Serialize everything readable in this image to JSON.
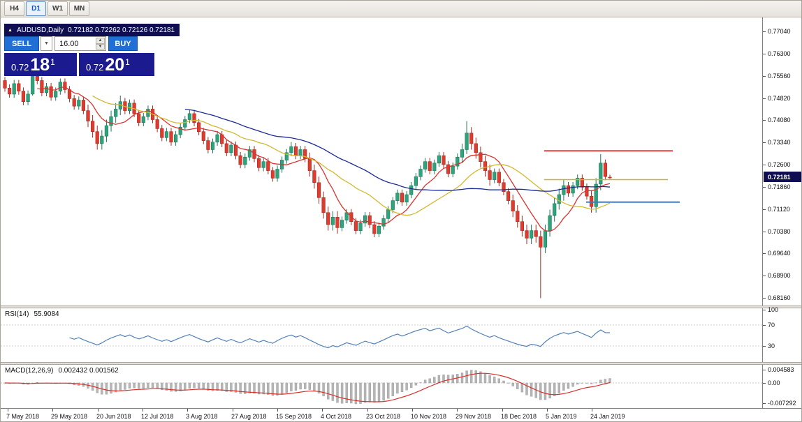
{
  "colors": {
    "trade_button": "#1f6fd6",
    "panel_navy": "#1b1b8f",
    "title_navy": "#0e0e50",
    "price_tag": "#0e0e50"
  },
  "toolbar": {
    "timeframes": [
      {
        "label": "H4",
        "active": false
      },
      {
        "label": "D1",
        "active": true
      },
      {
        "label": "W1",
        "active": false
      },
      {
        "label": "MN",
        "active": false
      }
    ]
  },
  "chart": {
    "symbol_period": "AUDUSD,Daily",
    "ohlc": "0.72182 0.72262 0.72126 0.72181",
    "trade_panel": {
      "sell_label": "SELL",
      "buy_label": "BUY",
      "volume": "16.00",
      "sell_price": {
        "prefix": "0.72",
        "big": "18",
        "pip": "1"
      },
      "buy_price": {
        "prefix": "0.72",
        "big": "20",
        "pip": "1"
      }
    },
    "price_axis": {
      "labels": [
        "0.77040",
        "0.76300",
        "0.75560",
        "0.74820",
        "0.74080",
        "0.73340",
        "0.72600",
        "0.71860",
        "0.71120",
        "0.70380",
        "0.69640",
        "0.68900",
        "0.68160"
      ],
      "current": "0.72181"
    }
  },
  "indicators": {
    "rsi": {
      "label": "RSI(14)",
      "value": "55.9084",
      "axis": [
        "100",
        "70",
        "30"
      ],
      "levels": [
        70,
        30
      ]
    },
    "macd": {
      "label": "MACD(12,26,9)",
      "values": "0.002432 0.001562",
      "axis": [
        "0.004583",
        "0.00",
        "-0.007292"
      ]
    }
  },
  "time_axis": {
    "labels": [
      "7 May 2018",
      "29 May 2018",
      "20 Jun 2018",
      "12 Jul 2018",
      "3 Aug 2018",
      "27 Aug 2018",
      "15 Sep 2018",
      "4 Oct 2018",
      "23 Oct 2018",
      "10 Nov 2018",
      "29 Nov 2018",
      "18 Dec 2018",
      "5 Jan 2019",
      "24 Jan 2019"
    ]
  },
  "chart_data": {
    "type": "candlestick",
    "title": "AUDUSD Daily",
    "symbol": "AUDUSD",
    "timeframe": "D1",
    "ylim": [
      0.6816,
      0.7704
    ],
    "x_range": [
      "7 May 2018",
      "1 Feb 2019"
    ],
    "colors": {
      "up": "#2fa37c",
      "up_border": "#1e7a5a",
      "down": "#df3c30",
      "down_border": "#a82a20",
      "rsi_line": "#4f81b8",
      "macd_hist": "#b5b5b5",
      "macd_signal": "#d92f28"
    },
    "moving_averages": [
      {
        "name": "ma-fast",
        "period": 8,
        "color": "#d9342e"
      },
      {
        "name": "ma-medium",
        "period": 20,
        "color": "#d4b82e"
      },
      {
        "name": "ma-slow",
        "period": 40,
        "color": "#1b2a94"
      }
    ],
    "horizontal_lines": [
      {
        "name": "resistance-line",
        "price": 0.7306,
        "color": "#e8413c",
        "width": 2,
        "x1": 0.714,
        "x2": 0.883
      },
      {
        "name": "pivot-line",
        "price": 0.721,
        "color": "#cdb42a",
        "width": 1.5,
        "x1": 0.714,
        "x2": 0.876
      },
      {
        "name": "support-line",
        "price": 0.7135,
        "color": "#3b7dc8",
        "width": 2,
        "x1": 0.769,
        "x2": 0.892
      }
    ],
    "indicator_params": [
      {
        "name": "RSI",
        "period": 14,
        "current": 55.9084
      },
      {
        "name": "MACD",
        "fast": 12,
        "slow": 26,
        "signal": 9,
        "current": [
          0.002432,
          0.001562
        ]
      }
    ],
    "candles": [
      [
        0.754,
        0.7552,
        0.7503,
        0.7515
      ],
      [
        0.7515,
        0.7527,
        0.7483,
        0.7495
      ],
      [
        0.7495,
        0.7542,
        0.7483,
        0.753
      ],
      [
        0.753,
        0.7542,
        0.7493,
        0.7505
      ],
      [
        0.7505,
        0.7517,
        0.7458,
        0.747
      ],
      [
        0.747,
        0.7507,
        0.7458,
        0.7495
      ],
      [
        0.7495,
        0.758,
        0.749,
        0.7555
      ],
      [
        0.7555,
        0.7567,
        0.7528,
        0.754
      ],
      [
        0.754,
        0.7552,
        0.7488,
        0.75
      ],
      [
        0.75,
        0.7532,
        0.7488,
        0.752
      ],
      [
        0.752,
        0.7532,
        0.7473,
        0.7485
      ],
      [
        0.7485,
        0.7517,
        0.7473,
        0.7505
      ],
      [
        0.7505,
        0.7547,
        0.7493,
        0.7535
      ],
      [
        0.7535,
        0.7547,
        0.7498,
        0.751
      ],
      [
        0.751,
        0.7522,
        0.7468,
        0.748
      ],
      [
        0.748,
        0.7492,
        0.7443,
        0.7455
      ],
      [
        0.7455,
        0.7487,
        0.7443,
        0.7475
      ],
      [
        0.7475,
        0.7487,
        0.7428,
        0.744
      ],
      [
        0.744,
        0.746,
        0.7385,
        0.7405
      ],
      [
        0.7405,
        0.7425,
        0.735,
        0.737
      ],
      [
        0.737,
        0.739,
        0.731,
        0.733
      ],
      [
        0.733,
        0.7375,
        0.731,
        0.7355
      ],
      [
        0.7355,
        0.741,
        0.7335,
        0.739
      ],
      [
        0.739,
        0.744,
        0.737,
        0.742
      ],
      [
        0.742,
        0.7465,
        0.74,
        0.7445
      ],
      [
        0.7445,
        0.749,
        0.7425,
        0.747
      ],
      [
        0.747,
        0.7482,
        0.7428,
        0.744
      ],
      [
        0.744,
        0.7477,
        0.7428,
        0.7465
      ],
      [
        0.7465,
        0.7477,
        0.7418,
        0.743
      ],
      [
        0.743,
        0.7442,
        0.7388,
        0.74
      ],
      [
        0.74,
        0.7432,
        0.7388,
        0.742
      ],
      [
        0.742,
        0.7457,
        0.7408,
        0.7445
      ],
      [
        0.7445,
        0.7457,
        0.7398,
        0.741
      ],
      [
        0.741,
        0.7422,
        0.7368,
        0.738
      ],
      [
        0.738,
        0.7392,
        0.7338,
        0.735
      ],
      [
        0.735,
        0.7382,
        0.7338,
        0.737
      ],
      [
        0.737,
        0.7382,
        0.7323,
        0.7335
      ],
      [
        0.7335,
        0.7372,
        0.7323,
        0.736
      ],
      [
        0.736,
        0.7397,
        0.7348,
        0.7385
      ],
      [
        0.7385,
        0.7422,
        0.7373,
        0.741
      ],
      [
        0.741,
        0.7442,
        0.7398,
        0.743
      ],
      [
        0.743,
        0.7442,
        0.7388,
        0.74
      ],
      [
        0.74,
        0.7412,
        0.7358,
        0.737
      ],
      [
        0.737,
        0.7382,
        0.7328,
        0.734
      ],
      [
        0.734,
        0.7352,
        0.7298,
        0.731
      ],
      [
        0.731,
        0.7347,
        0.7298,
        0.7335
      ],
      [
        0.7335,
        0.7372,
        0.7323,
        0.736
      ],
      [
        0.736,
        0.7372,
        0.7318,
        0.733
      ],
      [
        0.733,
        0.7342,
        0.7288,
        0.73
      ],
      [
        0.73,
        0.7337,
        0.7288,
        0.7325
      ],
      [
        0.7325,
        0.7337,
        0.7278,
        0.729
      ],
      [
        0.729,
        0.7302,
        0.7248,
        0.726
      ],
      [
        0.726,
        0.7297,
        0.7248,
        0.7285
      ],
      [
        0.7285,
        0.7322,
        0.7273,
        0.731
      ],
      [
        0.731,
        0.7322,
        0.7268,
        0.728
      ],
      [
        0.728,
        0.7292,
        0.7238,
        0.725
      ],
      [
        0.725,
        0.7282,
        0.7238,
        0.727
      ],
      [
        0.727,
        0.7282,
        0.7228,
        0.724
      ],
      [
        0.724,
        0.7252,
        0.7203,
        0.7215
      ],
      [
        0.7215,
        0.7257,
        0.7203,
        0.7245
      ],
      [
        0.7245,
        0.7287,
        0.7233,
        0.7275
      ],
      [
        0.7275,
        0.7312,
        0.7263,
        0.73
      ],
      [
        0.73,
        0.7335,
        0.7288,
        0.732
      ],
      [
        0.732,
        0.7332,
        0.7278,
        0.729
      ],
      [
        0.729,
        0.7322,
        0.7278,
        0.731
      ],
      [
        0.731,
        0.7322,
        0.7268,
        0.728
      ],
      [
        0.728,
        0.73,
        0.722,
        0.724
      ],
      [
        0.724,
        0.726,
        0.718,
        0.72
      ],
      [
        0.72,
        0.722,
        0.713,
        0.715
      ],
      [
        0.715,
        0.717,
        0.708,
        0.71
      ],
      [
        0.71,
        0.712,
        0.704,
        0.706
      ],
      [
        0.706,
        0.7105,
        0.704,
        0.7085
      ],
      [
        0.7085,
        0.7105,
        0.703,
        0.705
      ],
      [
        0.705,
        0.7087,
        0.7038,
        0.7075
      ],
      [
        0.7075,
        0.7112,
        0.7063,
        0.71
      ],
      [
        0.71,
        0.7112,
        0.7058,
        0.707
      ],
      [
        0.707,
        0.7082,
        0.7028,
        0.704
      ],
      [
        0.704,
        0.7077,
        0.7028,
        0.7065
      ],
      [
        0.7065,
        0.7102,
        0.7053,
        0.709
      ],
      [
        0.709,
        0.7102,
        0.7048,
        0.706
      ],
      [
        0.706,
        0.7072,
        0.7018,
        0.703
      ],
      [
        0.703,
        0.7067,
        0.7018,
        0.7055
      ],
      [
        0.7055,
        0.7092,
        0.7043,
        0.708
      ],
      [
        0.708,
        0.7122,
        0.7068,
        0.711
      ],
      [
        0.711,
        0.7152,
        0.7098,
        0.714
      ],
      [
        0.714,
        0.7177,
        0.7128,
        0.7165
      ],
      [
        0.7165,
        0.7177,
        0.7123,
        0.7135
      ],
      [
        0.7135,
        0.7172,
        0.7123,
        0.716
      ],
      [
        0.716,
        0.7202,
        0.7148,
        0.719
      ],
      [
        0.719,
        0.7232,
        0.7178,
        0.722
      ],
      [
        0.722,
        0.7257,
        0.7208,
        0.7245
      ],
      [
        0.7245,
        0.7282,
        0.7233,
        0.727
      ],
      [
        0.727,
        0.7282,
        0.7228,
        0.724
      ],
      [
        0.724,
        0.7277,
        0.7228,
        0.7265
      ],
      [
        0.7265,
        0.7302,
        0.7253,
        0.729
      ],
      [
        0.729,
        0.7302,
        0.7248,
        0.726
      ],
      [
        0.726,
        0.7272,
        0.7218,
        0.723
      ],
      [
        0.723,
        0.7267,
        0.7218,
        0.7255
      ],
      [
        0.7255,
        0.7297,
        0.7243,
        0.7285
      ],
      [
        0.7285,
        0.733,
        0.7265,
        0.731
      ],
      [
        0.731,
        0.7405,
        0.7295,
        0.7365
      ],
      [
        0.7365,
        0.7385,
        0.731,
        0.733
      ],
      [
        0.733,
        0.735,
        0.728,
        0.73
      ],
      [
        0.73,
        0.732,
        0.725,
        0.727
      ],
      [
        0.727,
        0.729,
        0.722,
        0.724
      ],
      [
        0.724,
        0.726,
        0.719,
        0.721
      ],
      [
        0.721,
        0.7247,
        0.7198,
        0.7235
      ],
      [
        0.7235,
        0.7247,
        0.7188,
        0.72
      ],
      [
        0.72,
        0.7212,
        0.7158,
        0.717
      ],
      [
        0.717,
        0.7182,
        0.7128,
        0.714
      ],
      [
        0.714,
        0.716,
        0.7085,
        0.7105
      ],
      [
        0.7105,
        0.7125,
        0.705,
        0.707
      ],
      [
        0.707,
        0.709,
        0.702,
        0.704
      ],
      [
        0.704,
        0.706,
        0.6995,
        0.7015
      ],
      [
        0.7015,
        0.706,
        0.6995,
        0.704
      ],
      [
        0.704,
        0.706,
        0.7,
        0.702
      ],
      [
        0.702,
        0.704,
        0.6815,
        0.6985
      ],
      [
        0.6985,
        0.706,
        0.6965,
        0.704
      ],
      [
        0.704,
        0.711,
        0.702,
        0.709
      ],
      [
        0.709,
        0.715,
        0.707,
        0.713
      ],
      [
        0.713,
        0.718,
        0.711,
        0.716
      ],
      [
        0.716,
        0.721,
        0.714,
        0.719
      ],
      [
        0.719,
        0.7202,
        0.7153,
        0.7165
      ],
      [
        0.7165,
        0.7202,
        0.7153,
        0.719
      ],
      [
        0.719,
        0.7227,
        0.7178,
        0.7215
      ],
      [
        0.7215,
        0.7227,
        0.7173,
        0.7185
      ],
      [
        0.7185,
        0.7197,
        0.7143,
        0.7155
      ],
      [
        0.7155,
        0.7175,
        0.71,
        0.712
      ],
      [
        0.712,
        0.7215,
        0.71,
        0.7195
      ],
      [
        0.7195,
        0.7295,
        0.7175,
        0.7265
      ],
      [
        0.7265,
        0.7277,
        0.7208,
        0.722
      ],
      [
        0.72182,
        0.72262,
        0.72126,
        0.72181
      ]
    ]
  }
}
